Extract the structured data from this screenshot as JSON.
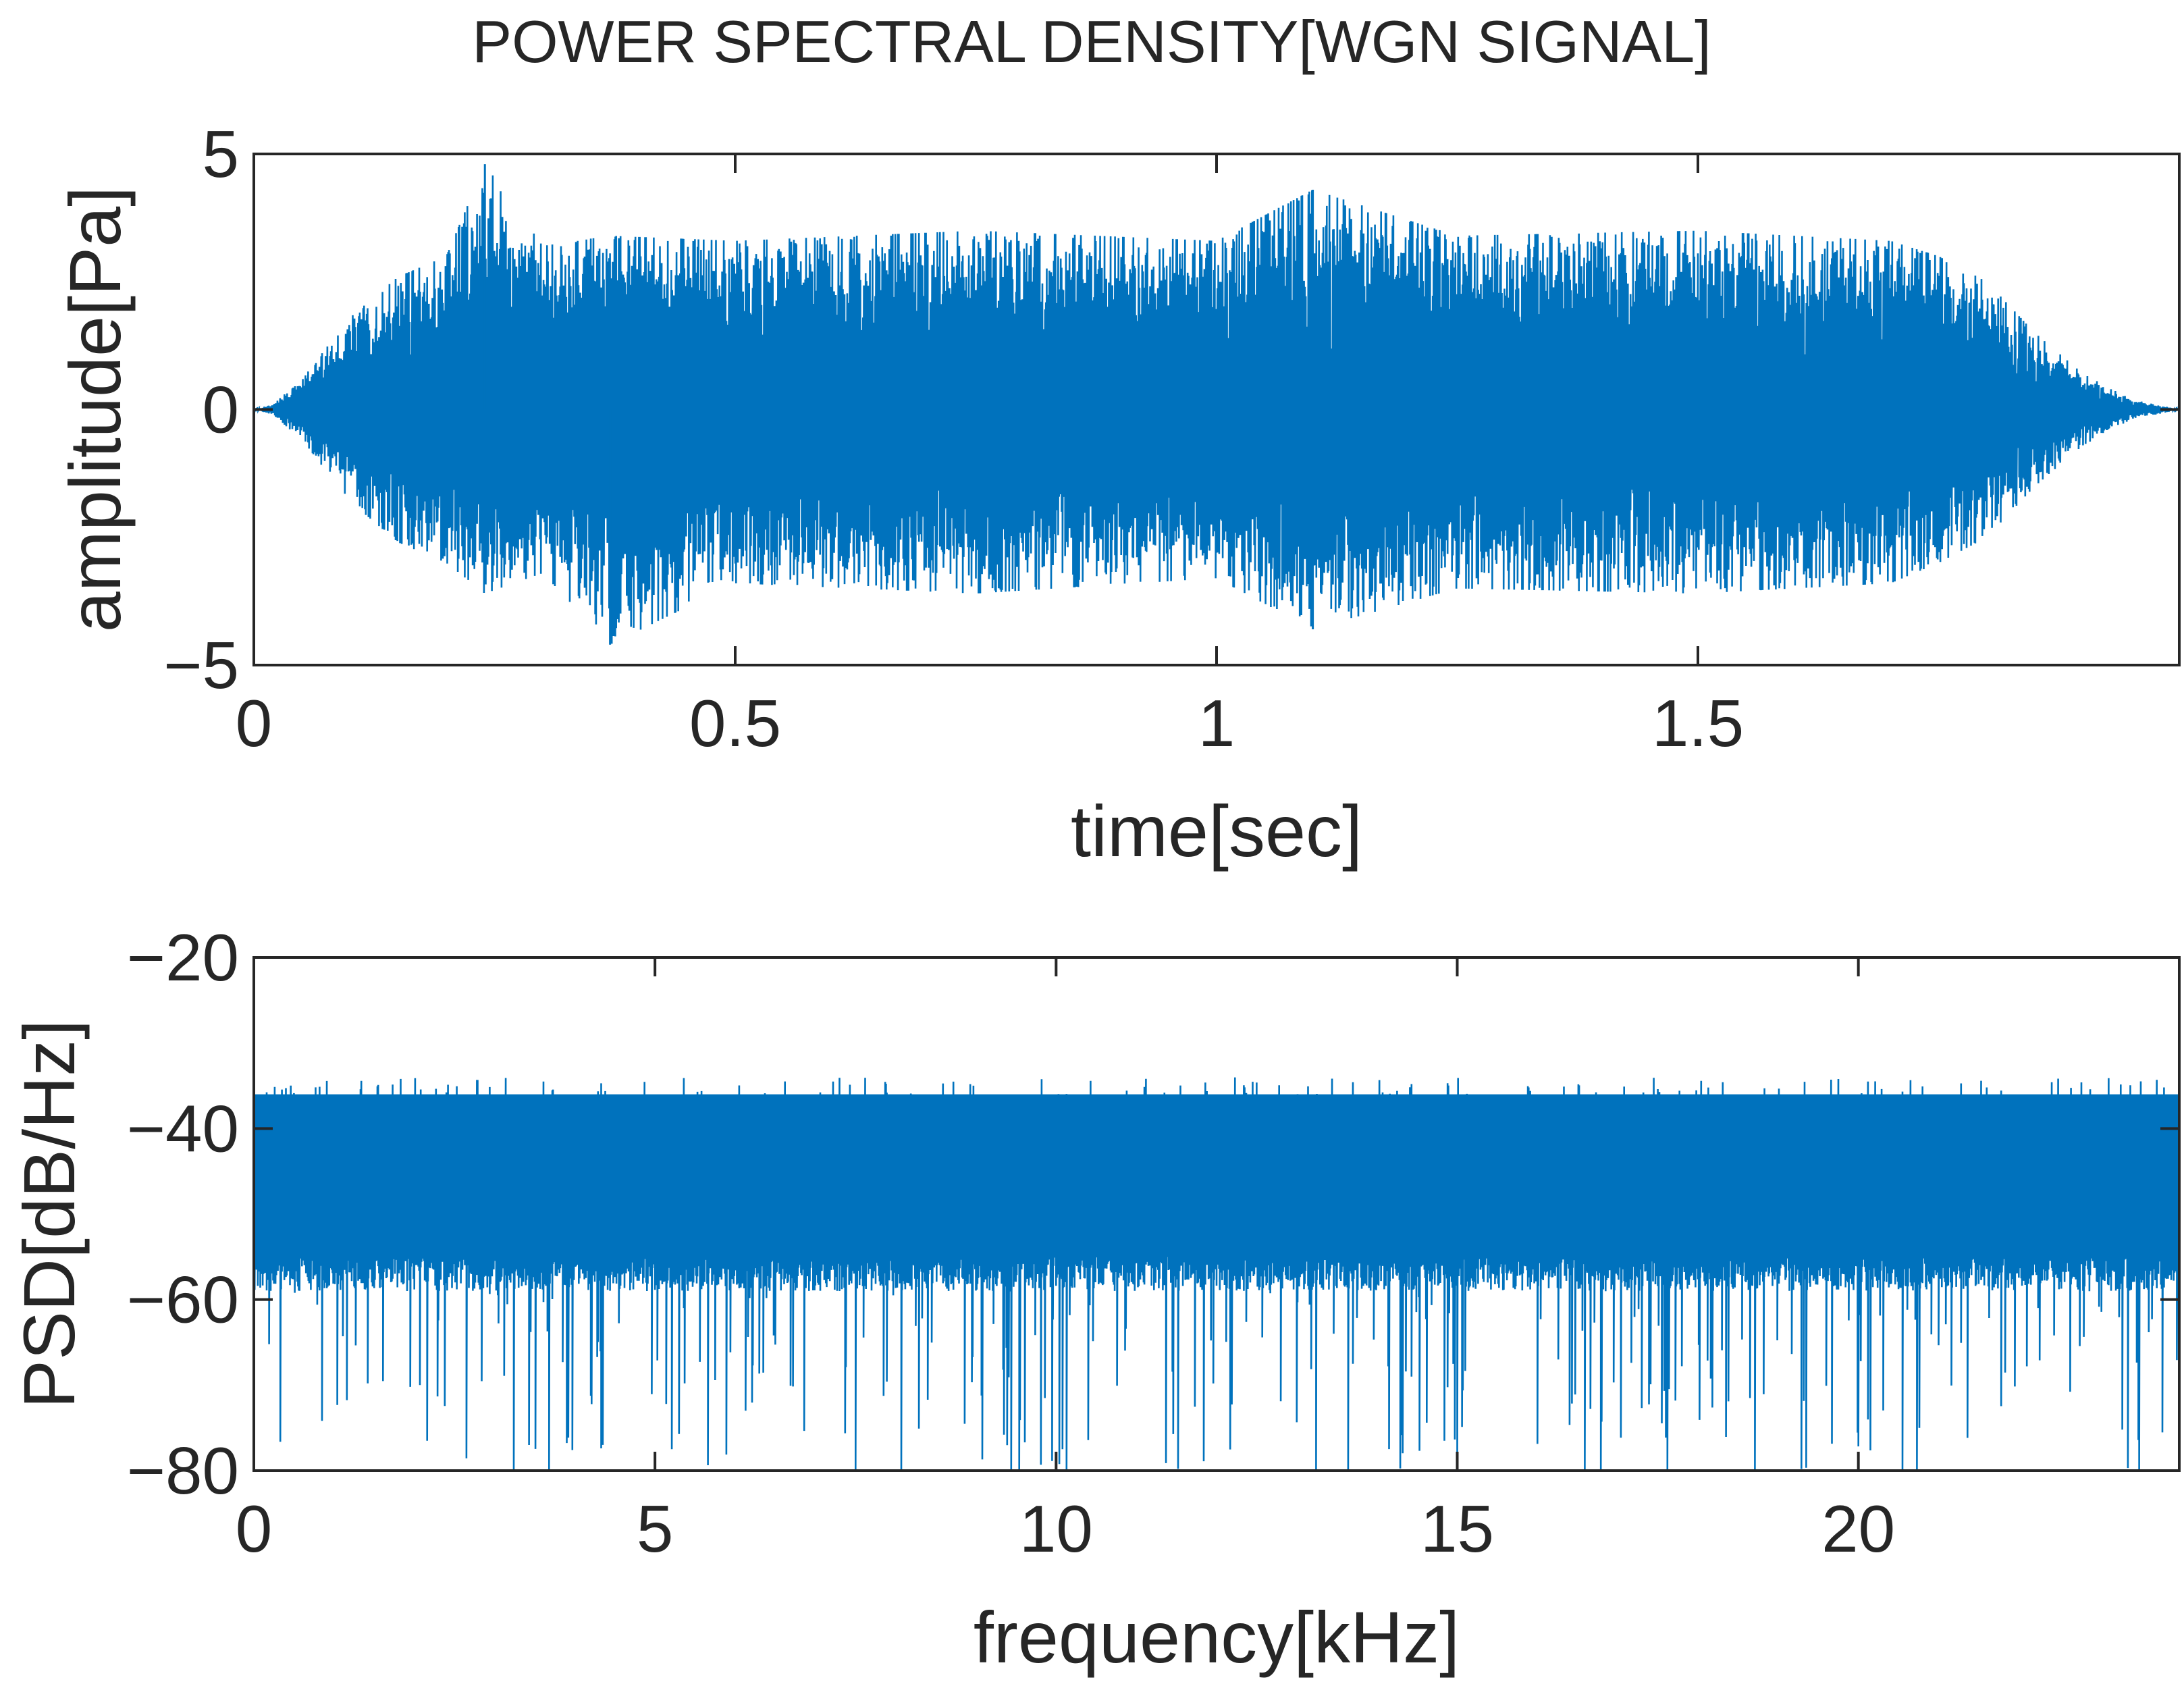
{
  "figure": {
    "title": "POWER SPECTRAL DENSITY[WGN SIGNAL]",
    "series_color": "#0072BD",
    "axis_color": "#262626"
  },
  "chart_data": [
    {
      "type": "line",
      "title": "",
      "xlabel": "time[sec]",
      "ylabel": "amplitude[Pa]",
      "xlim": [
        0,
        2
      ],
      "ylim": [
        -5,
        5
      ],
      "xticks": [
        0,
        0.5,
        1,
        1.5
      ],
      "xtick_labels": [
        "0",
        "0.5",
        "1",
        "1.5"
      ],
      "yticks": [
        -5,
        0,
        5
      ],
      "ytick_labels": [
        "−5",
        "0",
        "5"
      ],
      "grid": false,
      "legend": "none",
      "series": [
        {
          "description_of_shape": "white gaussian noise waveform, zero mean; amplitude fades in from 0 s to about 0.15 s and fades out from about 1.75 s to 2 s",
          "x": [
            0,
            0.02,
            0.05,
            0.1,
            0.15,
            0.2,
            0.24,
            0.3,
            0.37,
            0.5,
            0.75,
            1.0,
            1.1,
            1.25,
            1.5,
            1.7,
            1.75,
            1.8,
            1.85,
            1.9,
            1.95,
            2.0
          ],
          "upper": [
            0,
            0.1,
            0.6,
            1.8,
            2.6,
            3.0,
            4.8,
            3.2,
            3.4,
            3.3,
            3.5,
            3.3,
            4.3,
            3.4,
            3.5,
            3.3,
            3.0,
            2.5,
            1.5,
            0.7,
            0.2,
            0
          ],
          "lower": [
            0,
            -0.1,
            -0.6,
            -1.8,
            -2.6,
            -3.0,
            -3.6,
            -3.2,
            -4.6,
            -3.4,
            -3.6,
            -3.3,
            -4.3,
            -3.5,
            -3.6,
            -3.4,
            -3.0,
            -2.5,
            -1.5,
            -0.7,
            -0.2,
            0
          ]
        }
      ]
    },
    {
      "type": "line",
      "title": "",
      "xlabel": "frequency[kHz]",
      "ylabel": "PSD[dB/Hz]",
      "xlim": [
        0,
        24
      ],
      "ylim": [
        -80,
        -20
      ],
      "xticks": [
        0,
        5,
        10,
        15,
        20
      ],
      "xtick_labels": [
        "0",
        "5",
        "10",
        "15",
        "20"
      ],
      "yticks": [
        -80,
        -60,
        -40,
        -20
      ],
      "ytick_labels": [
        "−80",
        "−60",
        "−40",
        "−20"
      ],
      "grid": false,
      "legend": "none",
      "series": [
        {
          "description_of_shape": "flat noisy power spectral density; dense band between about -55 and -37 dB/Hz, peaks up to about -34 dB/Hz, occasional dips reaching -80 dB/Hz",
          "band_upper": -37,
          "band_lower": -55,
          "peak_max": -34,
          "dip_min": -80
        }
      ]
    }
  ]
}
